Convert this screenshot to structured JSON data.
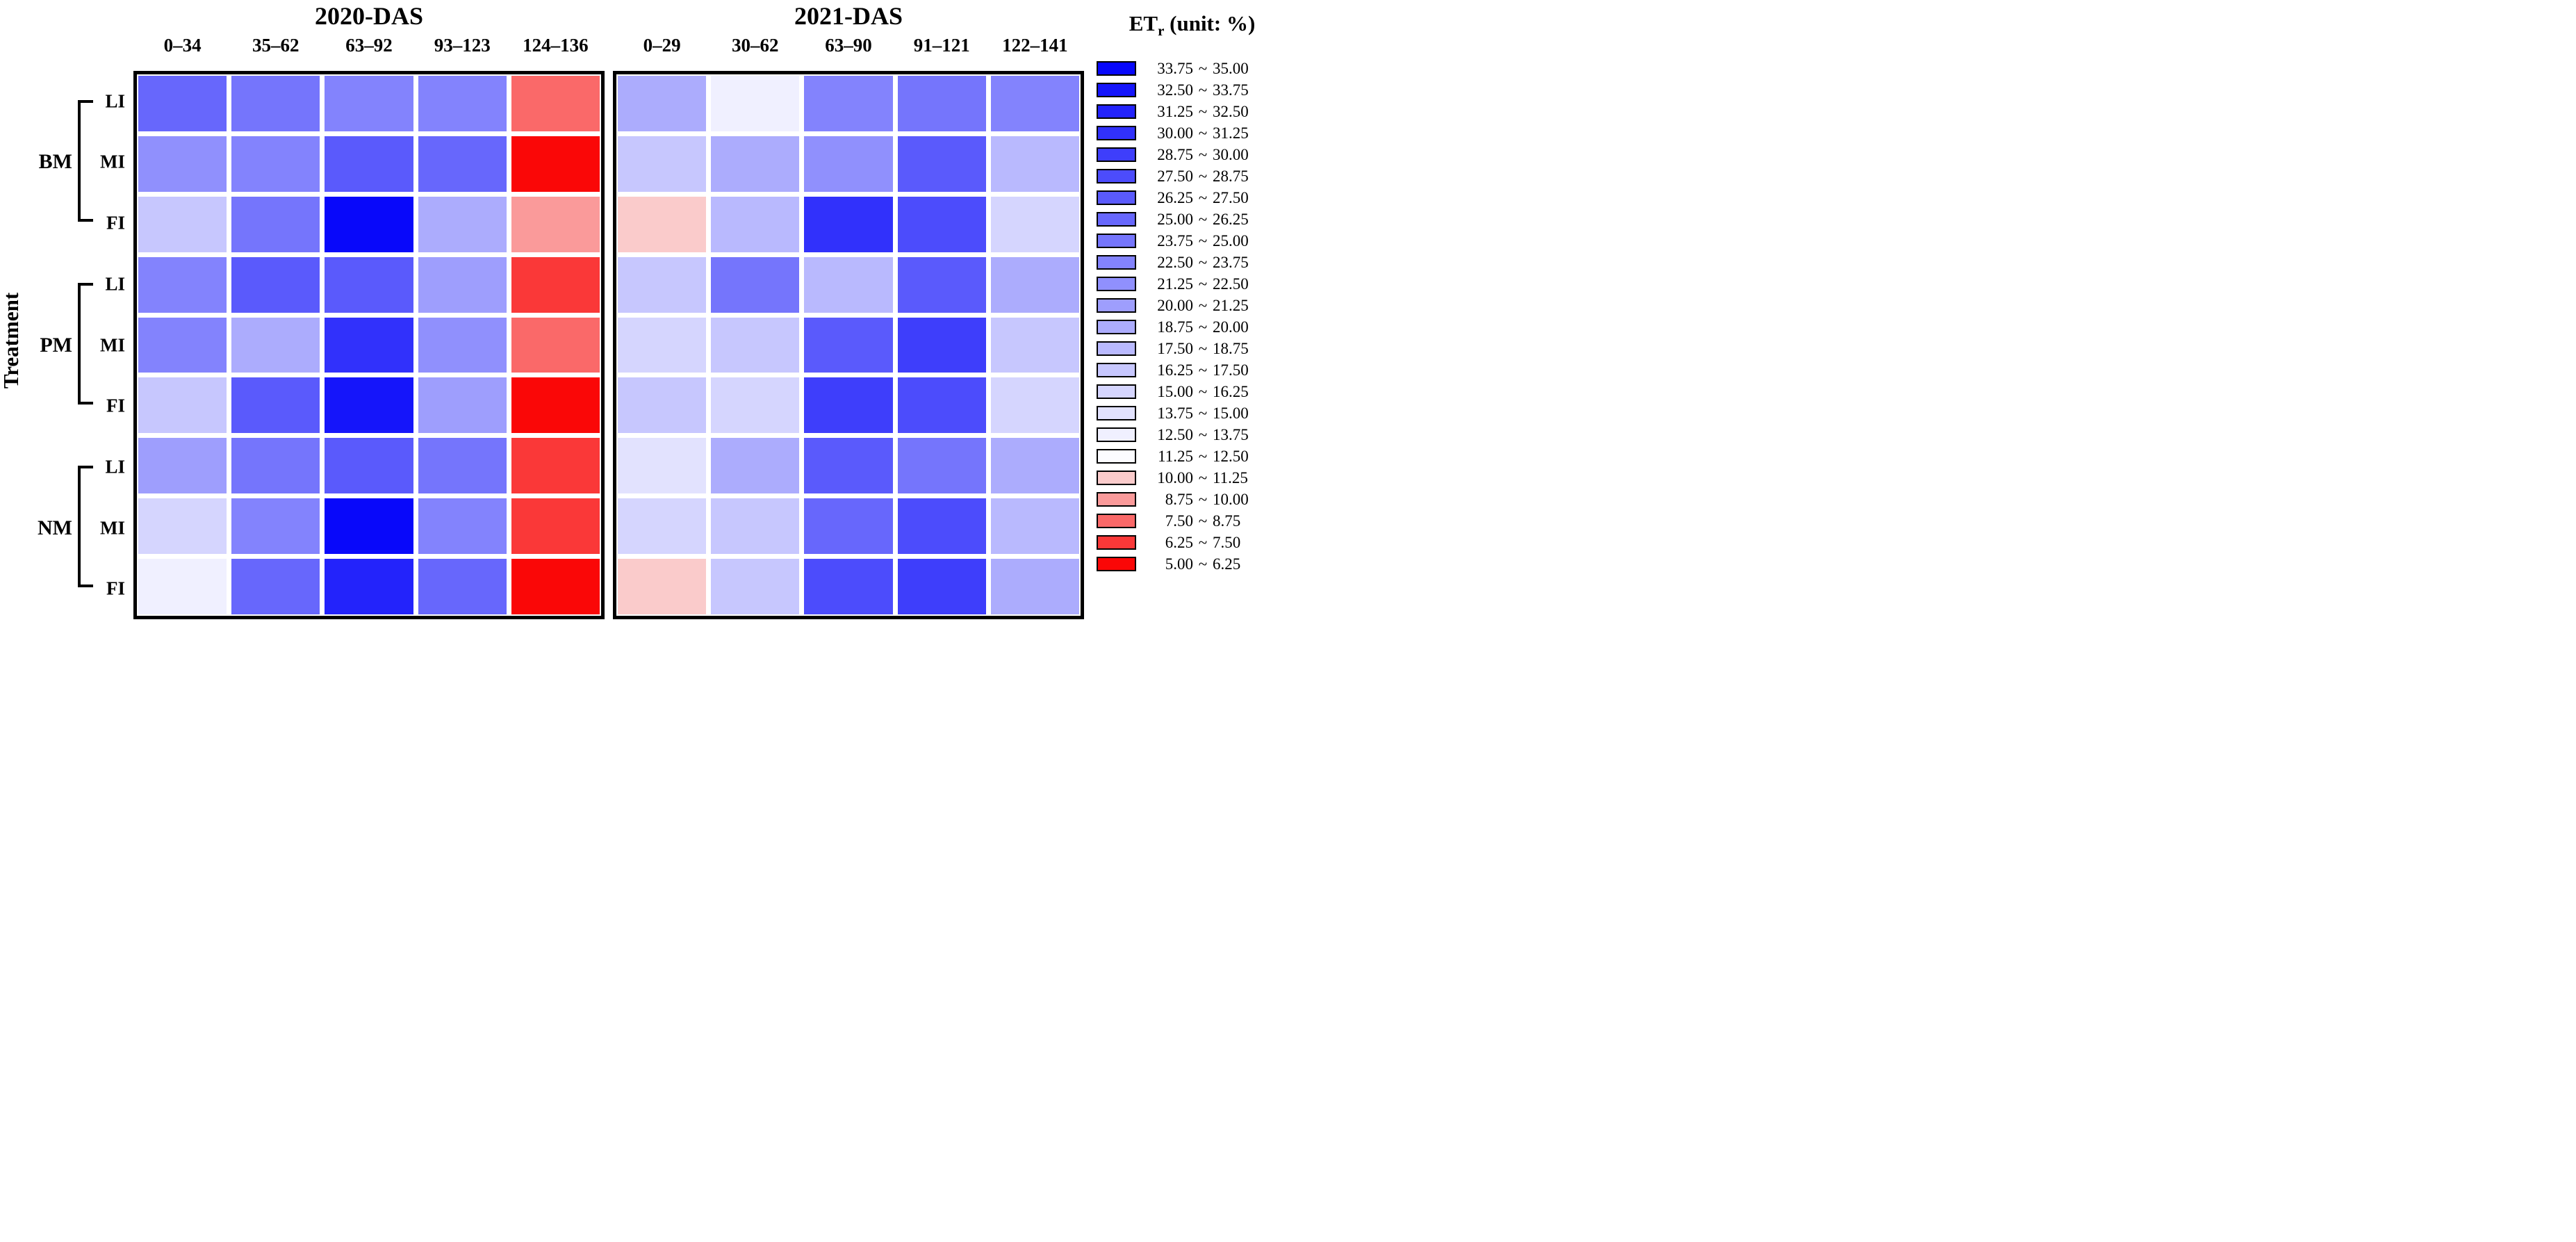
{
  "y_axis_title": "Treatment",
  "row_groups": [
    {
      "label": "BM",
      "rows": [
        "LI",
        "MI",
        "FI"
      ]
    },
    {
      "label": "PM",
      "rows": [
        "LI",
        "MI",
        "FI"
      ]
    },
    {
      "label": "NM",
      "rows": [
        "LI",
        "MI",
        "FI"
      ]
    }
  ],
  "legend": {
    "title_main": "ET",
    "title_sub": "r",
    "title_rest": " (unit: %)",
    "separator": "~",
    "bins": [
      {
        "from": "33.75",
        "to": "35.00",
        "color": "#0808FA"
      },
      {
        "from": "32.50",
        "to": "33.75",
        "color": "#1515FA"
      },
      {
        "from": "31.25",
        "to": "32.50",
        "color": "#2323FB"
      },
      {
        "from": "30.00",
        "to": "31.25",
        "color": "#3131FB"
      },
      {
        "from": "28.75",
        "to": "30.00",
        "color": "#3E3EFB"
      },
      {
        "from": "27.50",
        "to": "28.75",
        "color": "#4C4CFC"
      },
      {
        "from": "26.25",
        "to": "27.50",
        "color": "#5A5AFC"
      },
      {
        "from": "25.00",
        "to": "26.25",
        "color": "#6767FC"
      },
      {
        "from": "23.75",
        "to": "25.00",
        "color": "#7575FC"
      },
      {
        "from": "22.50",
        "to": "23.75",
        "color": "#8383FD"
      },
      {
        "from": "21.25",
        "to": "22.50",
        "color": "#9090FD"
      },
      {
        "from": "20.00",
        "to": "21.25",
        "color": "#9E9EFD"
      },
      {
        "from": "18.75",
        "to": "20.00",
        "color": "#ACACFD"
      },
      {
        "from": "17.50",
        "to": "18.75",
        "color": "#B9B9FE"
      },
      {
        "from": "16.25",
        "to": "17.50",
        "color": "#C7C7FE"
      },
      {
        "from": "15.00",
        "to": "16.25",
        "color": "#D5D5FE"
      },
      {
        "from": "13.75",
        "to": "15.00",
        "color": "#E2E2FE"
      },
      {
        "from": "12.50",
        "to": "13.75",
        "color": "#F0F0FF"
      },
      {
        "from": "11.25",
        "to": "12.50",
        "color": "#FCFCFF"
      },
      {
        "from": "10.00",
        "to": "11.25",
        "color": "#FACBCB"
      },
      {
        "from": "8.75",
        "to": "10.00",
        "color": "#FA9A9A"
      },
      {
        "from": "7.50",
        "to": "8.75",
        "color": "#FA6969"
      },
      {
        "from": "6.25",
        "to": "7.50",
        "color": "#FA3838"
      },
      {
        "from": "5.00",
        "to": "6.25",
        "color": "#FA0707"
      }
    ]
  },
  "chart_data": {
    "type": "heatmap",
    "value_label": "ETr",
    "unit": "%",
    "legend_position": "right",
    "row_labels": [
      "BM-LI",
      "BM-MI",
      "BM-FI",
      "PM-LI",
      "PM-MI",
      "PM-FI",
      "NM-LI",
      "NM-MI",
      "NM-FI"
    ],
    "value_range": [
      5.0,
      35.0
    ],
    "bin_width": 1.25,
    "panels": [
      {
        "title": "2020-DAS",
        "columns": [
          "0–34",
          "35–62",
          "63–92",
          "93–123",
          "124–136"
        ],
        "values": [
          [
            25.625,
            24.375,
            23.125,
            23.125,
            8.125
          ],
          [
            21.875,
            23.125,
            26.875,
            25.625,
            5.625
          ],
          [
            16.875,
            24.375,
            34.375,
            19.375,
            9.375
          ],
          [
            23.125,
            26.875,
            26.875,
            20.625,
            6.875
          ],
          [
            23.125,
            19.375,
            30.625,
            21.875,
            8.125
          ],
          [
            16.875,
            26.875,
            33.125,
            20.625,
            5.625
          ],
          [
            20.625,
            24.375,
            26.875,
            24.375,
            6.875
          ],
          [
            15.625,
            23.125,
            34.375,
            23.125,
            6.875
          ],
          [
            13.125,
            25.625,
            31.875,
            25.625,
            5.625
          ]
        ]
      },
      {
        "title": "2021-DAS",
        "columns": [
          "0–29",
          "30–62",
          "63–90",
          "91–121",
          "122–141"
        ],
        "values": [
          [
            19.375,
            13.125,
            23.125,
            24.375,
            23.125
          ],
          [
            16.875,
            19.375,
            21.875,
            26.875,
            18.125
          ],
          [
            10.625,
            18.125,
            30.625,
            28.125,
            15.625
          ],
          [
            16.875,
            24.375,
            18.125,
            26.875,
            19.375
          ],
          [
            15.625,
            16.875,
            26.875,
            29.375,
            16.875
          ],
          [
            16.875,
            15.625,
            29.375,
            28.125,
            15.625
          ],
          [
            14.375,
            19.375,
            26.875,
            24.375,
            19.375
          ],
          [
            15.625,
            16.875,
            25.625,
            28.125,
            18.125
          ],
          [
            10.625,
            16.875,
            28.125,
            29.375,
            19.375
          ]
        ]
      }
    ]
  }
}
